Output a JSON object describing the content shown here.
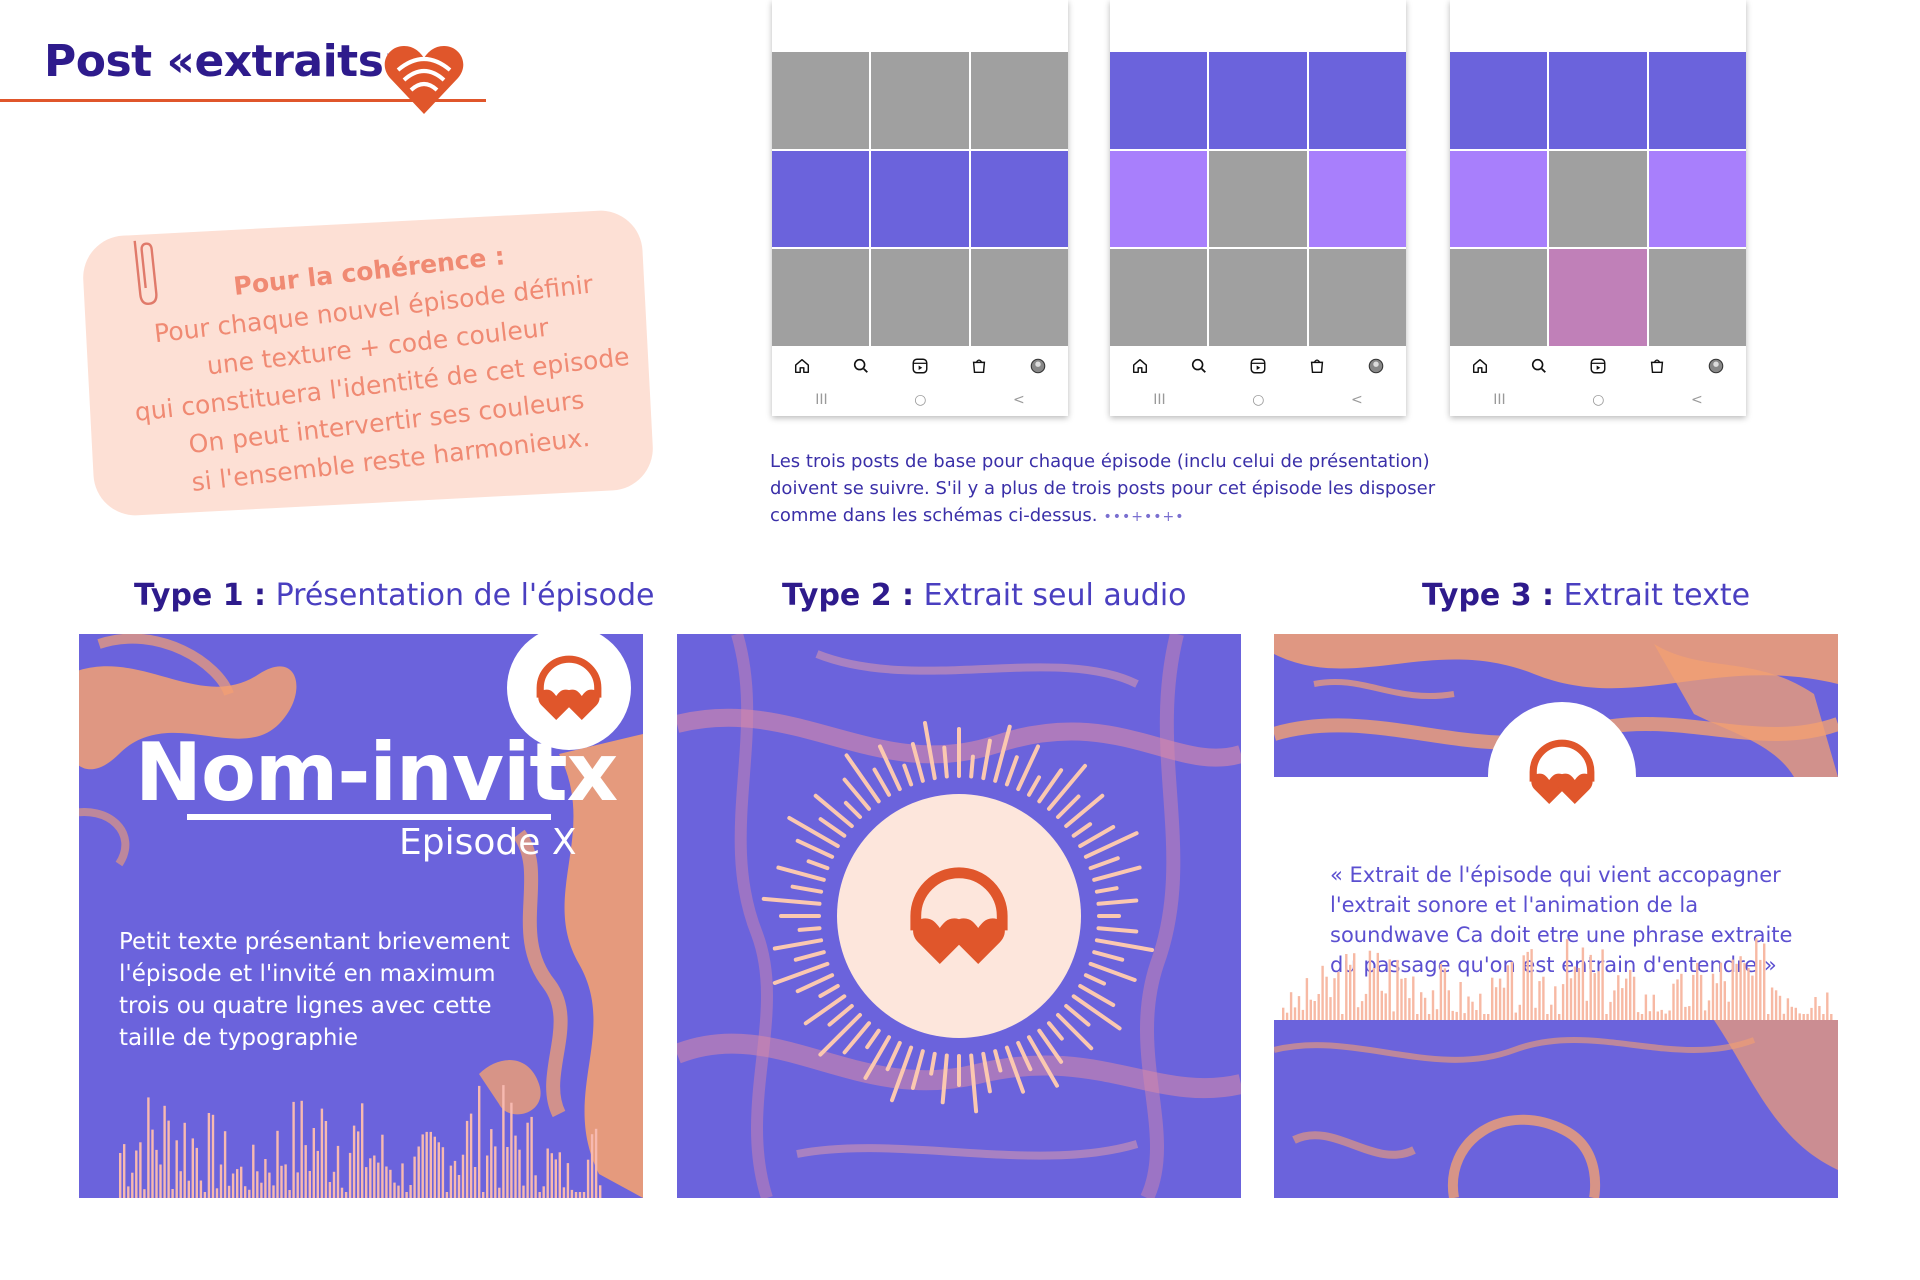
{
  "header": {
    "title": "Post «extraits»",
    "logo_icon": "heart-wifi-icon"
  },
  "note": {
    "heading": "Pour la cohérence :",
    "lines": [
      "Pour chaque nouvel épisode définir",
      "une texture + code couleur",
      "qui constituera l'identité de cet episode",
      "On peut intervertir ses couleurs",
      "si l'ensemble reste harmonieux."
    ],
    "icon": "paperclip-icon"
  },
  "phones": [
    {
      "grid": [
        "gray",
        "gray",
        "gray",
        "blue",
        "blue",
        "blue",
        "gray",
        "gray",
        "gray"
      ]
    },
    {
      "grid": [
        "blue",
        "blue",
        "blue",
        "lilac",
        "gray",
        "lilac",
        "gray",
        "gray",
        "gray"
      ]
    },
    {
      "grid": [
        "blue",
        "blue",
        "blue",
        "lilac",
        "gray",
        "lilac",
        "gray",
        "mauve",
        "gray"
      ]
    }
  ],
  "phone_nav_icons": [
    "home-icon",
    "search-icon",
    "reels-icon",
    "shop-icon",
    "profile-avatar-icon"
  ],
  "phone_system_glyphs": [
    "III",
    "○",
    "<"
  ],
  "phones_caption": {
    "text": "Les trois posts de base pour chaque épisode (inclu celui de présentation) doivent se suivre. S'il y a plus de trois posts pour cet épisode les disposer comme dans les schémas ci-dessus.",
    "dots": "•••+••+•"
  },
  "types": [
    {
      "number": "Type 1 :",
      "label": "Présentation de l'épisode"
    },
    {
      "number": "Type 2 :",
      "label": "Extrait seul audio"
    },
    {
      "number": "Type 3 :",
      "label": "Extrait texte"
    }
  ],
  "card1": {
    "title": "Nom-invitx",
    "episode": "Episode X",
    "body": "Petit texte présentant brievement l'épisode et l'invité en maximum trois ou quatre lignes avec cette taille de typographie",
    "badge_icon": "heart-headphones-icon"
  },
  "card2": {
    "center_icon": "heart-headphones-icon"
  },
  "card3": {
    "quote": "« Extrait de l'épisode qui vient accopagner l'extrait sonore et l'animation de la soundwave Ca doit etre une phrase extraite du passage qu'on est entrain d'entendre »",
    "badge_icon": "heart-headphones-icon"
  },
  "colors": {
    "navy": "#2e1b8c",
    "accent_orange": "#e0562b",
    "peach": "#fde0d5",
    "violet": "#6b63dc",
    "lilac": "#a87ffc",
    "mauve": "#c080b8",
    "gray": "#a0a0a0",
    "texture_orange": "#f3a072"
  }
}
